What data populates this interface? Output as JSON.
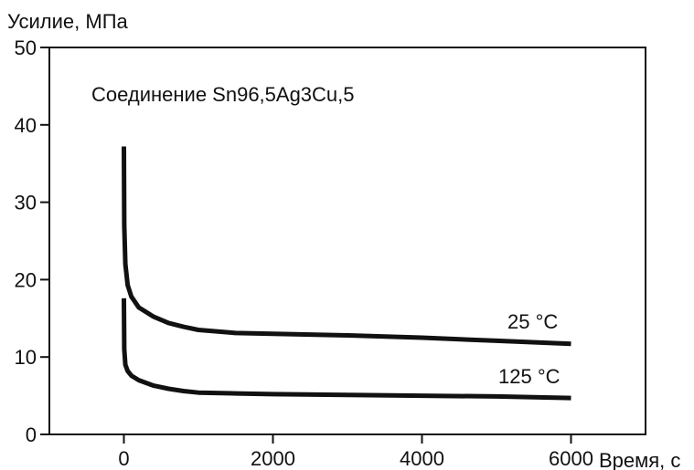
{
  "chart_data": {
    "type": "line",
    "title": "",
    "ylabel": "Усилие, МПа",
    "xlabel": "Время, с",
    "annotation": "Соединение Sn96,5Ag3Cu,5",
    "xlim": [
      -1000,
      7000
    ],
    "ylim": [
      0,
      50
    ],
    "x_ticks": [
      0,
      2000,
      4000,
      6000
    ],
    "y_ticks": [
      0,
      10,
      20,
      30,
      40,
      50
    ],
    "grid": false,
    "series": [
      {
        "name": "25 °C",
        "color": "#111111",
        "x": [
          0,
          5,
          20,
          50,
          100,
          200,
          400,
          600,
          800,
          1000,
          1500,
          2000,
          3000,
          4000,
          5000,
          6000
        ],
        "y": [
          37.2,
          27,
          22,
          19.3,
          17.8,
          16.4,
          15.2,
          14.4,
          13.9,
          13.5,
          13.1,
          13.0,
          12.8,
          12.5,
          12.1,
          11.7
        ]
      },
      {
        "name": "125 °C",
        "color": "#111111",
        "x": [
          0,
          5,
          20,
          50,
          100,
          200,
          400,
          600,
          800,
          1000,
          1500,
          2000,
          3000,
          4000,
          5000,
          6000
        ],
        "y": [
          17.6,
          11,
          9,
          8.2,
          7.6,
          7.0,
          6.3,
          5.9,
          5.6,
          5.4,
          5.3,
          5.2,
          5.1,
          5.0,
          4.9,
          4.7
        ]
      }
    ]
  }
}
